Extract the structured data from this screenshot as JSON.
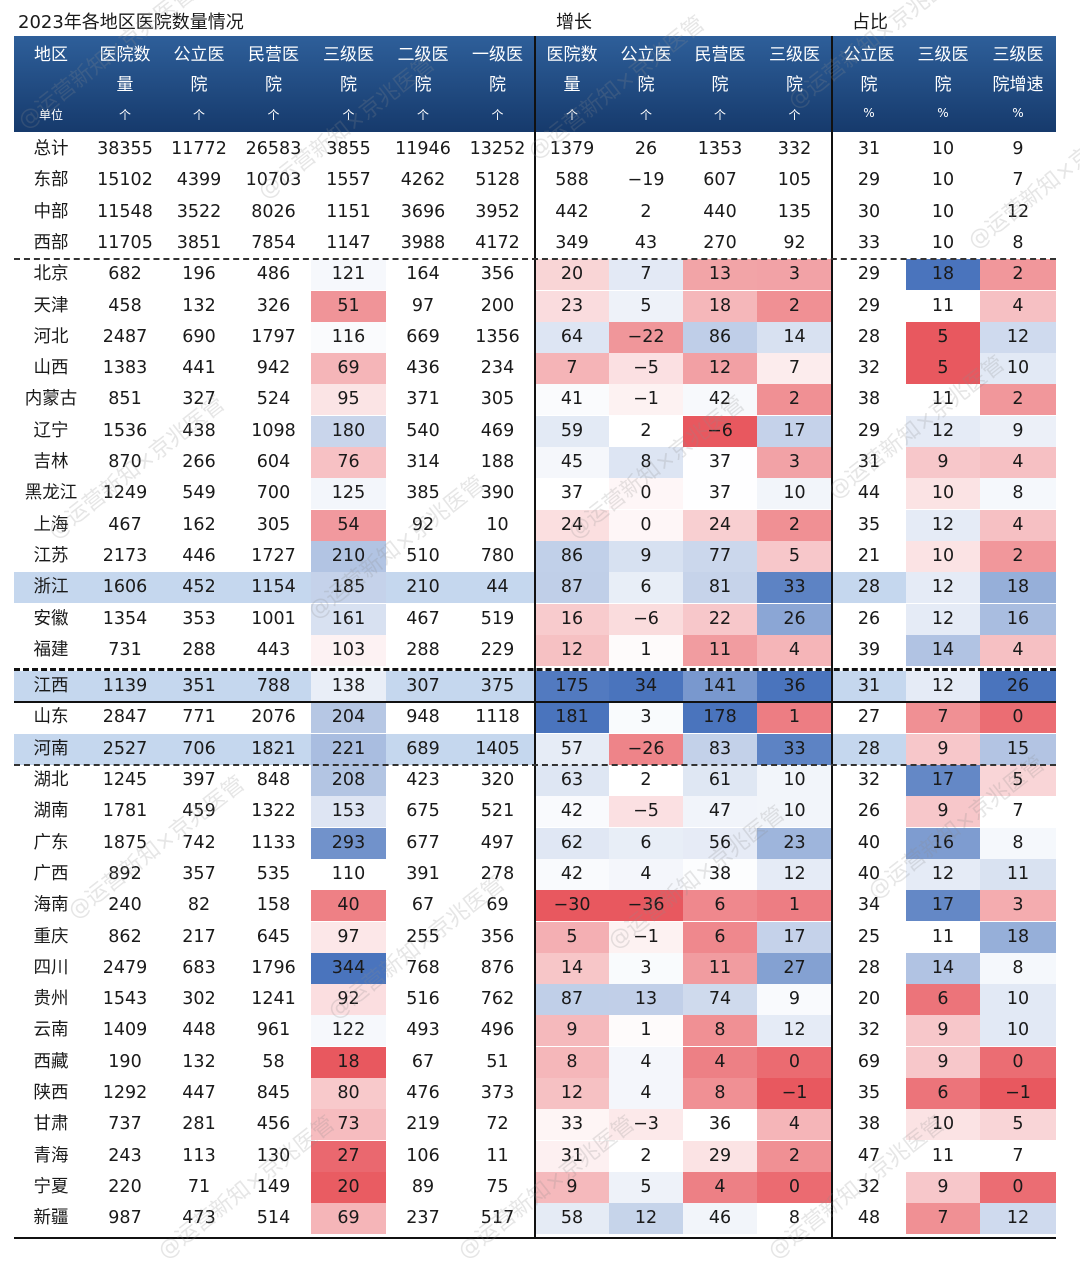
{
  "chart_data": {
    "type": "table",
    "title": "2023年各地区医院数量情况",
    "sections": [
      "增长",
      "占比"
    ],
    "headers": [
      {
        "line1": "地区",
        "line2": "",
        "unit": "单位"
      },
      {
        "line1": "医院数",
        "line2": "量",
        "unit": "个"
      },
      {
        "line1": "公立医",
        "line2": "院",
        "unit": "个"
      },
      {
        "line1": "民营医",
        "line2": "院",
        "unit": "个"
      },
      {
        "line1": "三级医",
        "line2": "院",
        "unit": "个"
      },
      {
        "line1": "二级医",
        "line2": "院",
        "unit": "个"
      },
      {
        "line1": "一级医",
        "line2": "院",
        "unit": "个"
      },
      {
        "line1": "医院数",
        "line2": "量",
        "unit": "个"
      },
      {
        "line1": "公立医",
        "line2": "院",
        "unit": "个"
      },
      {
        "line1": "民营医",
        "line2": "院",
        "unit": "个"
      },
      {
        "line1": "三级医",
        "line2": "院",
        "unit": "个"
      },
      {
        "line1": "公立医",
        "line2": "院",
        "unit": "%"
      },
      {
        "line1": "三级医",
        "line2": "院",
        "unit": "%"
      },
      {
        "line1": "三级医",
        "line2": "院增速",
        "unit": "%"
      }
    ],
    "rows": [
      [
        "总计",
        "38355",
        "11772",
        "26583",
        "3855",
        "11946",
        "13252",
        "1379",
        "26",
        "1353",
        "332",
        "31",
        "10",
        "9"
      ],
      [
        "东部",
        "15102",
        "4399",
        "10703",
        "1557",
        "4262",
        "5128",
        "588",
        "−19",
        "607",
        "105",
        "29",
        "10",
        "7"
      ],
      [
        "中部",
        "11548",
        "3522",
        "8026",
        "1151",
        "3696",
        "3952",
        "442",
        "2",
        "440",
        "135",
        "30",
        "10",
        "12"
      ],
      [
        "西部",
        "11705",
        "3851",
        "7854",
        "1147",
        "3988",
        "4172",
        "349",
        "43",
        "270",
        "92",
        "33",
        "10",
        "8"
      ],
      [
        "北京",
        "682",
        "196",
        "486",
        "121",
        "164",
        "356",
        "20",
        "7",
        "13",
        "3",
        "29",
        "18",
        "2"
      ],
      [
        "天津",
        "458",
        "132",
        "326",
        "51",
        "97",
        "200",
        "23",
        "5",
        "18",
        "2",
        "29",
        "11",
        "4"
      ],
      [
        "河北",
        "2487",
        "690",
        "1797",
        "116",
        "669",
        "1356",
        "64",
        "−22",
        "86",
        "14",
        "28",
        "5",
        "12"
      ],
      [
        "山西",
        "1383",
        "441",
        "942",
        "69",
        "436",
        "234",
        "7",
        "−5",
        "12",
        "7",
        "32",
        "5",
        "10"
      ],
      [
        "内蒙古",
        "851",
        "327",
        "524",
        "95",
        "371",
        "305",
        "41",
        "−1",
        "42",
        "2",
        "38",
        "11",
        "2"
      ],
      [
        "辽宁",
        "1536",
        "438",
        "1098",
        "180",
        "540",
        "469",
        "59",
        "2",
        "−6",
        "17",
        "29",
        "12",
        "9"
      ],
      [
        "吉林",
        "870",
        "266",
        "604",
        "76",
        "314",
        "188",
        "45",
        "8",
        "37",
        "3",
        "31",
        "9",
        "4"
      ],
      [
        "黑龙江",
        "1249",
        "549",
        "700",
        "125",
        "385",
        "390",
        "37",
        "0",
        "37",
        "10",
        "44",
        "10",
        "8"
      ],
      [
        "上海",
        "467",
        "162",
        "305",
        "54",
        "92",
        "10",
        "24",
        "0",
        "24",
        "2",
        "35",
        "12",
        "4"
      ],
      [
        "江苏",
        "2173",
        "446",
        "1727",
        "210",
        "510",
        "780",
        "86",
        "9",
        "77",
        "5",
        "21",
        "10",
        "2"
      ],
      [
        "浙江",
        "1606",
        "452",
        "1154",
        "185",
        "210",
        "44",
        "87",
        "6",
        "81",
        "33",
        "28",
        "12",
        "18"
      ],
      [
        "安徽",
        "1354",
        "353",
        "1001",
        "161",
        "467",
        "519",
        "16",
        "−6",
        "22",
        "26",
        "26",
        "12",
        "16"
      ],
      [
        "福建",
        "731",
        "288",
        "443",
        "103",
        "288",
        "229",
        "12",
        "1",
        "11",
        "4",
        "39",
        "14",
        "4"
      ],
      [
        "江西",
        "1139",
        "351",
        "788",
        "138",
        "307",
        "375",
        "175",
        "34",
        "141",
        "36",
        "31",
        "12",
        "26"
      ],
      [
        "山东",
        "2847",
        "771",
        "2076",
        "204",
        "948",
        "1118",
        "181",
        "3",
        "178",
        "1",
        "27",
        "7",
        "0"
      ],
      [
        "河南",
        "2527",
        "706",
        "1821",
        "221",
        "689",
        "1405",
        "57",
        "−26",
        "83",
        "33",
        "28",
        "9",
        "15"
      ],
      [
        "湖北",
        "1245",
        "397",
        "848",
        "208",
        "423",
        "320",
        "63",
        "2",
        "61",
        "10",
        "32",
        "17",
        "5"
      ],
      [
        "湖南",
        "1781",
        "459",
        "1322",
        "153",
        "675",
        "521",
        "42",
        "−5",
        "47",
        "10",
        "26",
        "9",
        "7"
      ],
      [
        "广东",
        "1875",
        "742",
        "1133",
        "293",
        "677",
        "497",
        "62",
        "6",
        "56",
        "23",
        "40",
        "16",
        "8"
      ],
      [
        "广西",
        "892",
        "357",
        "535",
        "110",
        "391",
        "278",
        "42",
        "4",
        "38",
        "12",
        "40",
        "12",
        "11"
      ],
      [
        "海南",
        "240",
        "82",
        "158",
        "40",
        "67",
        "69",
        "−30",
        "−36",
        "6",
        "1",
        "34",
        "17",
        "3"
      ],
      [
        "重庆",
        "862",
        "217",
        "645",
        "97",
        "255",
        "356",
        "5",
        "−1",
        "6",
        "17",
        "25",
        "11",
        "18"
      ],
      [
        "四川",
        "2479",
        "683",
        "1796",
        "344",
        "768",
        "876",
        "14",
        "3",
        "11",
        "27",
        "28",
        "14",
        "8"
      ],
      [
        "贵州",
        "1543",
        "302",
        "1241",
        "92",
        "516",
        "762",
        "87",
        "13",
        "74",
        "9",
        "20",
        "6",
        "10"
      ],
      [
        "云南",
        "1409",
        "448",
        "961",
        "122",
        "493",
        "496",
        "9",
        "1",
        "8",
        "12",
        "32",
        "9",
        "10"
      ],
      [
        "西藏",
        "190",
        "132",
        "58",
        "18",
        "67",
        "51",
        "8",
        "4",
        "4",
        "0",
        "69",
        "9",
        "0"
      ],
      [
        "陕西",
        "1292",
        "447",
        "845",
        "80",
        "476",
        "373",
        "12",
        "4",
        "8",
        "−1",
        "35",
        "6",
        "−1"
      ],
      [
        "甘肃",
        "737",
        "281",
        "456",
        "73",
        "219",
        "72",
        "33",
        "−3",
        "36",
        "4",
        "38",
        "10",
        "5"
      ],
      [
        "青海",
        "243",
        "113",
        "130",
        "27",
        "106",
        "11",
        "31",
        "2",
        "29",
        "2",
        "47",
        "11",
        "7"
      ],
      [
        "宁夏",
        "220",
        "71",
        "149",
        "20",
        "89",
        "75",
        "9",
        "5",
        "4",
        "0",
        "32",
        "9",
        "0"
      ],
      [
        "新疆",
        "987",
        "473",
        "514",
        "69",
        "237",
        "517",
        "58",
        "12",
        "46",
        "8",
        "48",
        "7",
        "12"
      ]
    ],
    "highlight_rows": [
      "浙江",
      "江西",
      "河南"
    ],
    "heatmap_columns": [
      4,
      7,
      8,
      9,
      10,
      12,
      13
    ],
    "heatmap_colors": {
      "low": "#e8585f",
      "mid": "#ffffff",
      "high": "#4a74bd"
    },
    "highlight_row_color": "#c5d7ee",
    "header_color": "#1d4379"
  },
  "watermark": "@运营新知×京兆医管"
}
